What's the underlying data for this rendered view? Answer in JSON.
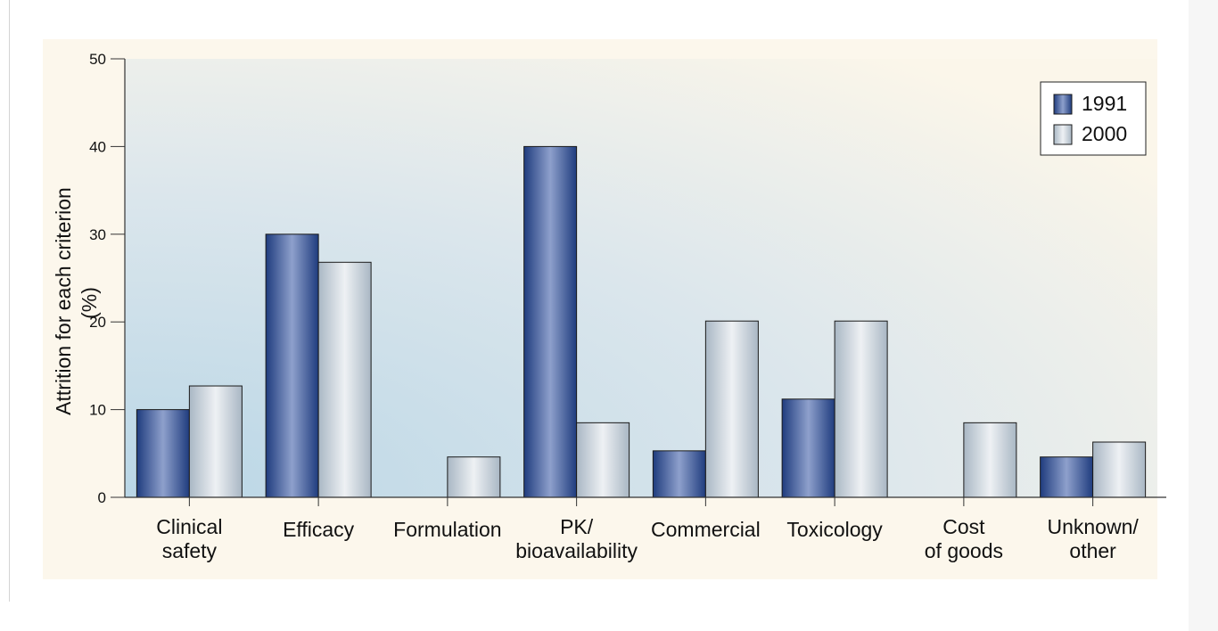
{
  "chart_data": {
    "type": "bar",
    "categories": [
      [
        "Clinical",
        "safety"
      ],
      [
        "Efficacy"
      ],
      [
        "Formulation"
      ],
      [
        "PK/",
        "bioavailability"
      ],
      [
        "Commercial"
      ],
      [
        "Toxicology"
      ],
      [
        "Cost",
        "of goods"
      ],
      [
        "Unknown/",
        "other"
      ]
    ],
    "series": [
      {
        "name": "1991",
        "values": [
          10,
          30,
          0,
          40,
          5.3,
          11.2,
          0,
          4.6
        ],
        "color": "#2c4a8e"
      },
      {
        "name": "2000",
        "values": [
          12.7,
          26.8,
          4.6,
          8.5,
          20.1,
          20.1,
          8.5,
          6.3
        ],
        "color": "#c9d3dc"
      }
    ],
    "ylabel": "Attrition for each criterion (%)",
    "ylim": [
      0,
      50
    ],
    "yticks": [
      0,
      10,
      20,
      30,
      40,
      50
    ],
    "legend_position": "top-right",
    "grid": false
  }
}
